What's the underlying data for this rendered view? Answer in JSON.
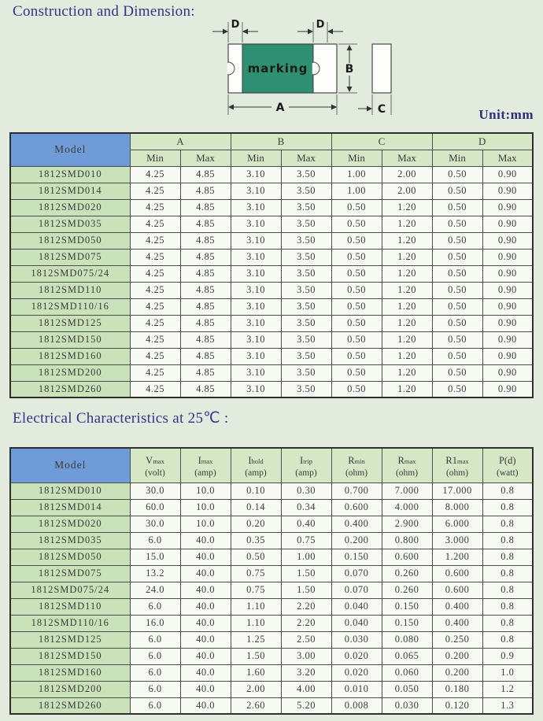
{
  "page": {
    "section1_title": "Construction and Dimension:",
    "section2_title": "Electrical Characteristics at 25℃ :",
    "unit_label": "Unit:mm"
  },
  "diagram": {
    "marking_label": "marking",
    "dim_a": "A",
    "dim_b": "B",
    "dim_c": "C",
    "dim_d_left": "D",
    "dim_d_right": "D",
    "body_color": "#2e9071"
  },
  "dimension_table": {
    "model_header": "Model",
    "group_headers": [
      "A",
      "B",
      "C",
      "D"
    ],
    "min_label": "Min",
    "max_label": "Max",
    "rows": [
      [
        "1812SMD010",
        "4.25",
        "4.85",
        "3.10",
        "3.50",
        "1.00",
        "2.00",
        "0.50",
        "0.90"
      ],
      [
        "1812SMD014",
        "4.25",
        "4.85",
        "3.10",
        "3.50",
        "1.00",
        "2.00",
        "0.50",
        "0.90"
      ],
      [
        "1812SMD020",
        "4.25",
        "4.85",
        "3.10",
        "3.50",
        "0.50",
        "1.20",
        "0.50",
        "0.90"
      ],
      [
        "1812SMD035",
        "4.25",
        "4.85",
        "3.10",
        "3.50",
        "0.50",
        "1.20",
        "0.50",
        "0.90"
      ],
      [
        "1812SMD050",
        "4.25",
        "4.85",
        "3.10",
        "3.50",
        "0.50",
        "1.20",
        "0.50",
        "0.90"
      ],
      [
        "1812SMD075",
        "4.25",
        "4.85",
        "3.10",
        "3.50",
        "0.50",
        "1.20",
        "0.50",
        "0.90"
      ],
      [
        "1812SMD075/24",
        "4.25",
        "4.85",
        "3.10",
        "3.50",
        "0.50",
        "1.20",
        "0.50",
        "0.90"
      ],
      [
        "1812SMD110",
        "4.25",
        "4.85",
        "3.10",
        "3.50",
        "0.50",
        "1.20",
        "0.50",
        "0.90"
      ],
      [
        "1812SMD110/16",
        "4.25",
        "4.85",
        "3.10",
        "3.50",
        "0.50",
        "1.20",
        "0.50",
        "0.90"
      ],
      [
        "1812SMD125",
        "4.25",
        "4.85",
        "3.10",
        "3.50",
        "0.50",
        "1.20",
        "0.50",
        "0.90"
      ],
      [
        "1812SMD150",
        "4.25",
        "4.85",
        "3.10",
        "3.50",
        "0.50",
        "1.20",
        "0.50",
        "0.90"
      ],
      [
        "1812SMD160",
        "4.25",
        "4.85",
        "3.10",
        "3.50",
        "0.50",
        "1.20",
        "0.50",
        "0.90"
      ],
      [
        "1812SMD200",
        "4.25",
        "4.85",
        "3.10",
        "3.50",
        "0.50",
        "1.20",
        "0.50",
        "0.90"
      ],
      [
        "1812SMD260",
        "4.25",
        "4.85",
        "3.10",
        "3.50",
        "0.50",
        "1.20",
        "0.50",
        "0.90"
      ]
    ]
  },
  "electrical_table": {
    "model_header": "Model",
    "columns": [
      {
        "main": "V",
        "sub": "max",
        "unit": "(volt)"
      },
      {
        "main": "I",
        "sub": "max",
        "unit": "(amp)"
      },
      {
        "main": "I",
        "sub": "hold",
        "unit": "(amp)"
      },
      {
        "main": "I",
        "sub": "trip",
        "unit": "(amp)"
      },
      {
        "main": "R",
        "sub": "min",
        "unit": "(ohm)"
      },
      {
        "main": "R",
        "sub": "max",
        "unit": "(ohm)"
      },
      {
        "main": "R1",
        "sub": "max",
        "unit": "(ohm)"
      },
      {
        "main": "P(d)",
        "sub": "",
        "unit": "(watt)"
      }
    ],
    "rows": [
      [
        "1812SMD010",
        "30.0",
        "10.0",
        "0.10",
        "0.30",
        "0.700",
        "7.000",
        "17.000",
        "0.8"
      ],
      [
        "1812SMD014",
        "60.0",
        "10.0",
        "0.14",
        "0.34",
        "0.600",
        "4.000",
        "8.000",
        "0.8"
      ],
      [
        "1812SMD020",
        "30.0",
        "10.0",
        "0.20",
        "0.40",
        "0.400",
        "2.900",
        "6.000",
        "0.8"
      ],
      [
        "1812SMD035",
        "6.0",
        "40.0",
        "0.35",
        "0.75",
        "0.200",
        "0.800",
        "3.000",
        "0.8"
      ],
      [
        "1812SMD050",
        "15.0",
        "40.0",
        "0.50",
        "1.00",
        "0.150",
        "0.600",
        "1.200",
        "0.8"
      ],
      [
        "1812SMD075",
        "13.2",
        "40.0",
        "0.75",
        "1.50",
        "0.070",
        "0.260",
        "0.600",
        "0.8"
      ],
      [
        "1812SMD075/24",
        "24.0",
        "40.0",
        "0.75",
        "1.50",
        "0.070",
        "0.260",
        "0.600",
        "0.8"
      ],
      [
        "1812SMD110",
        "6.0",
        "40.0",
        "1.10",
        "2.20",
        "0.040",
        "0.150",
        "0.400",
        "0.8"
      ],
      [
        "1812SMD110/16",
        "16.0",
        "40.0",
        "1.10",
        "2.20",
        "0.040",
        "0.150",
        "0.400",
        "0.8"
      ],
      [
        "1812SMD125",
        "6.0",
        "40.0",
        "1.25",
        "2.50",
        "0.030",
        "0.080",
        "0.250",
        "0.8"
      ],
      [
        "1812SMD150",
        "6.0",
        "40.0",
        "1.50",
        "3.00",
        "0.020",
        "0.065",
        "0.200",
        "0.9"
      ],
      [
        "1812SMD160",
        "6.0",
        "40.0",
        "1.60",
        "3.20",
        "0.020",
        "0.060",
        "0.200",
        "1.0"
      ],
      [
        "1812SMD200",
        "6.0",
        "40.0",
        "2.00",
        "4.00",
        "0.010",
        "0.050",
        "0.180",
        "1.2"
      ],
      [
        "1812SMD260",
        "6.0",
        "40.0",
        "2.60",
        "5.20",
        "0.008",
        "0.030",
        "0.120",
        "1.3"
      ]
    ]
  }
}
